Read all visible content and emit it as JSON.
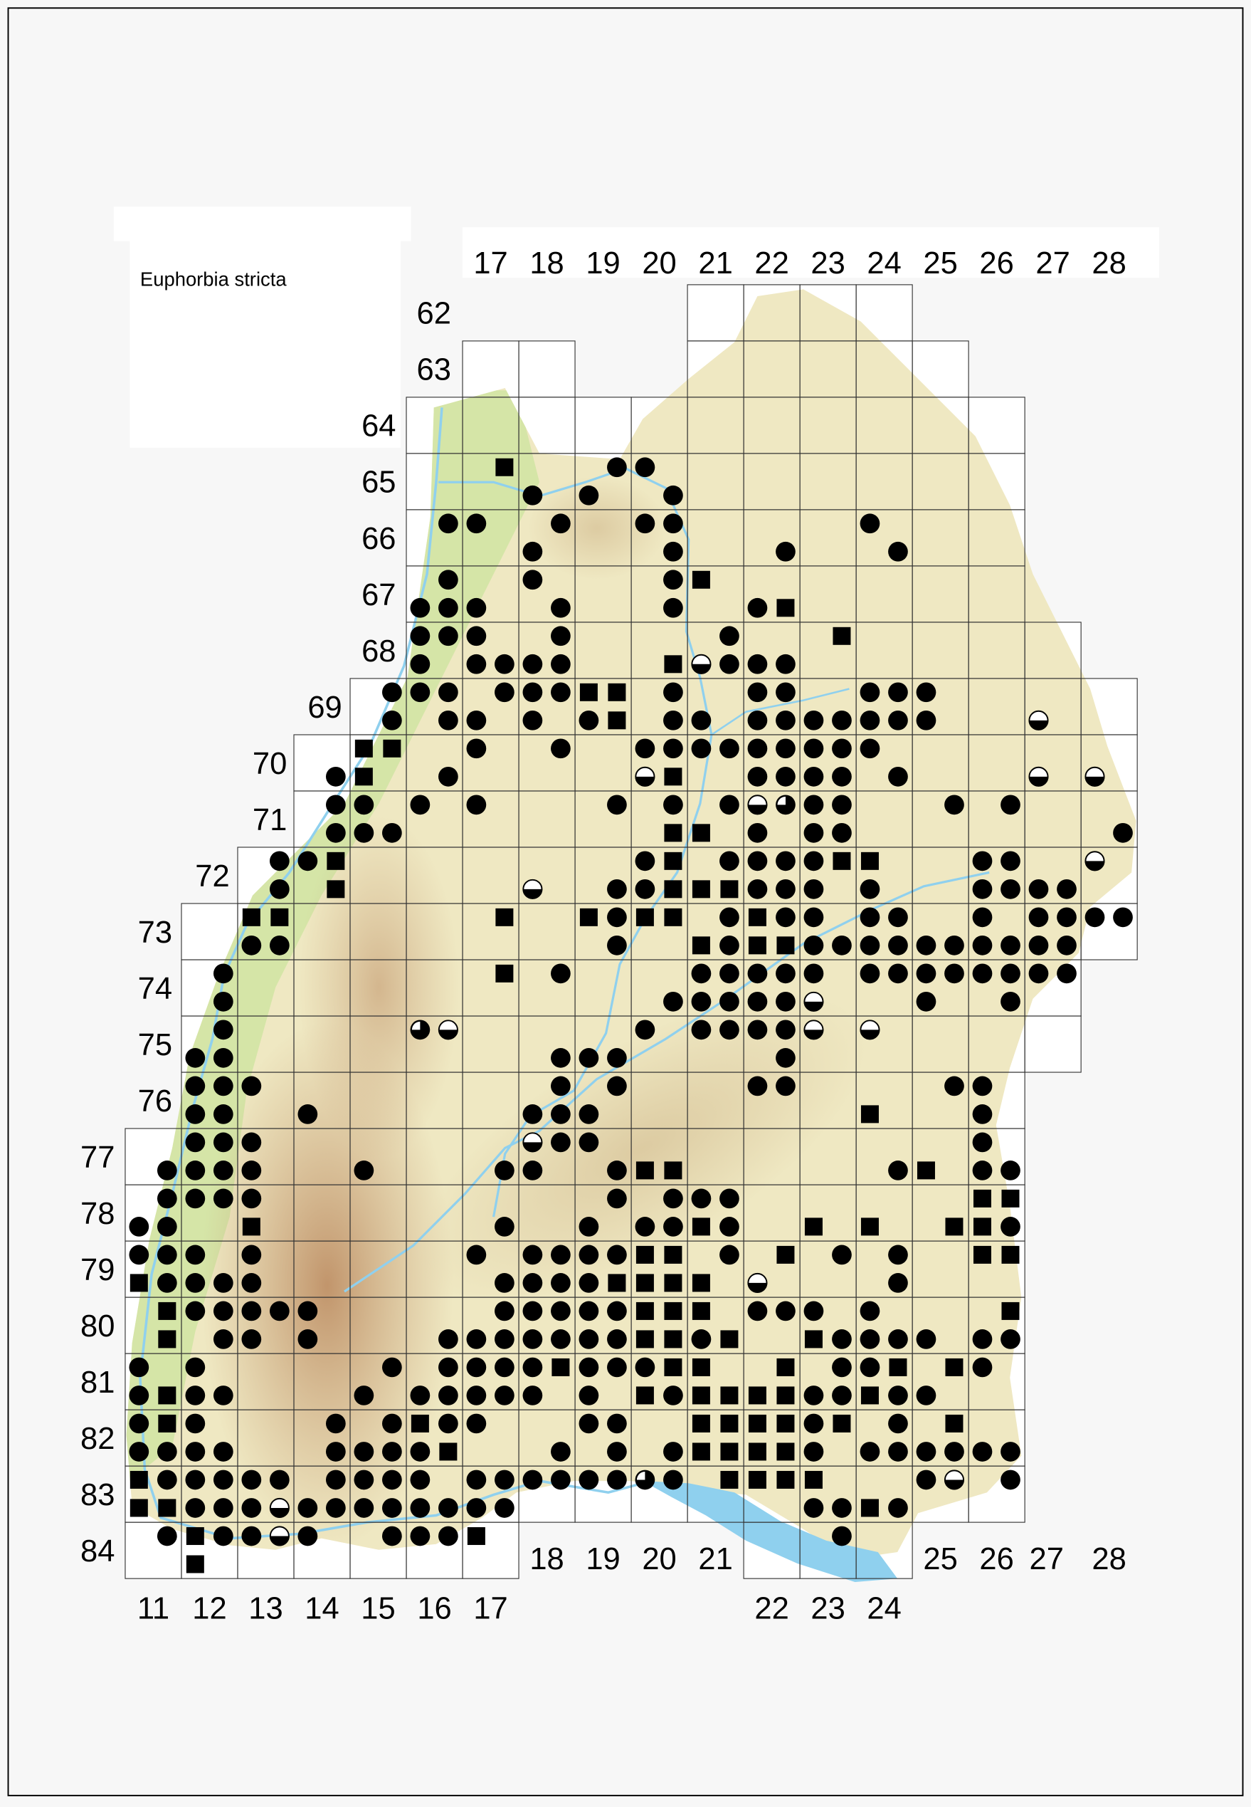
{
  "map": {
    "title": "Euphorbia stricta"
  },
  "grid": {
    "top_column_labels": [
      "17",
      "18",
      "19",
      "20",
      "21",
      "22",
      "23",
      "24",
      "25",
      "26",
      "27",
      "28"
    ],
    "row_labels": [
      "62",
      "63",
      "64",
      "65",
      "66",
      "67",
      "68",
      "69",
      "70",
      "71",
      "72",
      "73",
      "74",
      "75",
      "76",
      "77",
      "78",
      "79",
      "80",
      "81",
      "82",
      "83",
      "84"
    ],
    "bottom_column_labels": [
      "11",
      "12",
      "13",
      "14",
      "15",
      "16",
      "17",
      "18",
      "19",
      "20",
      "21",
      "22",
      "23",
      "24",
      "25",
      "26",
      "27",
      "28"
    ]
  },
  "symbols": {
    "o": "filled-circle",
    "s": "filled-square",
    "h": "half-filled-circle",
    "q": "three-quarter-filled-circle",
    ".": "none"
  },
  "colors": {
    "symbol": "#000000",
    "water": "#8fd0ee",
    "lowland": "#d6e6a8",
    "upland": "#efe8c2",
    "mountain": "#c49a72",
    "grid_line": "#333333"
  },
  "occurrence_columns": "TK columns 11 to 28, two quadrant halves each (west, east)",
  "occurrence_rows": [
    {
      "row": "65",
      "half": "north",
      "cells": ".. .. .. .. .. .. .s .. .o o. .. .. .. .. .. .. .. .."
    },
    {
      "row": "65",
      "half": "south",
      "cells": ".. .. .. .. .. .. .. o. o. .o .. .. .. .. .. .. .. .."
    },
    {
      "row": "66",
      "half": "north",
      "cells": ".. .. .. .. .. .o o. .o .. oo .. .. .. o. .. .. .. .."
    },
    {
      "row": "66",
      "half": "south",
      "cells": ".. .. .. .. .. .. .. o. .. .o .. .o .. .o .. .. .. .."
    },
    {
      "row": "67",
      "half": "north",
      "cells": ".. .. .. .. .. .o .. o. .. .o s. .. .. .. .. .. .. .."
    },
    {
      "row": "67",
      "half": "south",
      "cells": ".. .. .. .. .. oo o. .o .. .o .. os .. .. .. .. .. .."
    },
    {
      "row": "68",
      "half": "north",
      "cells": ".. .. .. .. .. oo o. .o .. .. .o .. .s .. .. .. .. .."
    },
    {
      "row": "68",
      "half": "south",
      "cells": ".. .. .. .. .. o. oo oo .. .s ho oo .. .. .. .. .. .."
    },
    {
      "row": "69",
      "half": "north",
      "cells": ".. .. .. .. .o oo .o oo ss .o .. oo .. oo o. .. .. .."
    },
    {
      "row": "69",
      "half": "south",
      "cells": ".. .. .. .. .o .o o. o. os .o o. oo oo oo o. .. h. .."
    },
    {
      "row": "70",
      "half": "north",
      "cells": ".. .. .. .. ss .. o. .o .. oo oo oo oo o. .. .. .. .."
    },
    {
      "row": "70",
      "half": "south",
      "cells": ".. .. .. .o s. .o .. .. .. hs .. oo oo .o .. .. h. h."
    },
    {
      "row": "71",
      "half": "north",
      "cells": ".. .. .. .o o. o. o. .. .o .o .o hq oo .. .o .o .. .."
    },
    {
      "row": "71",
      "half": "south",
      "cells": ".. .. .. .o oo .. .. .. .. .s s. o. oo .. .. .. .. .o"
    },
    {
      "row": "72",
      "half": "north",
      "cells": ".. .. .o os .. .. .. .. .. os .o oo os s. .. oo .. h."
    },
    {
      "row": "72",
      "half": "south",
      "cells": ".. .. .o .s .. .. .. h. .o os ss oo o. o. .. oo oo .."
    },
    {
      "row": "73",
      "half": "north",
      "cells": ".. .. ss .. .. .. .s .. so ss .o so o. oo .. o. oo oo"
    },
    {
      "row": "73",
      "half": "south",
      "cells": ".. .. oo .. .. .. .. .. .o .. so ss oo oo oo oo oo .."
    },
    {
      "row": "74",
      "half": "north",
      "cells": ".. .o .. .. .. .. .s .o .. .. oo oo o. oo oo oo oo .."
    },
    {
      "row": "74",
      "half": "south",
      "cells": ".. .o .. .. .. .. .. .. .. .o oo oo h. .. o. .o .. .."
    },
    {
      "row": "75",
      "half": "north",
      "cells": ".. .o .. .. .. qh .. .. .. o. oo oo h. h. .. .. .. .."
    },
    {
      "row": "75",
      "half": "south",
      "cells": ".. oo .. .. .. .. .. .o oo .. .. .o .. .. .. .. .. .."
    },
    {
      "row": "76",
      "half": "north",
      "cells": ".. oo o. .. .. .. .. .o .o .. .. oo .. .. .o o. .. .."
    },
    {
      "row": "76",
      "half": "south",
      "cells": ".. oo .. o. .. .. .. oo o. .. .. .. .. s. .. o. .. .."
    },
    {
      "row": "77",
      "half": "north",
      "cells": ".. oo o. .. .. .. .. ho o. .. .. .. .. .. .. o. .. .."
    },
    {
      "row": "77",
      "half": "south",
      "cells": ".o oo o. .. o. .. .o o. .o ss .. .. .. .o s. oo .. .."
    },
    {
      "row": "78",
      "half": "north",
      "cells": ".o oo o. .. .. .. .. .. .o .o oo .. .. .. .. ss .. .."
    },
    {
      "row": "78",
      "half": "south",
      "cells": "oo .. s. .. .. .. .o .. o. oo so .. s. s. .s so .. .."
    },
    {
      "row": "79",
      "half": "north",
      "cells": "oo o. o. .. .. .. o. oo oo ss .o .s .o .o .. ss .. .."
    },
    {
      "row": "79",
      "half": "south",
      "cells": "so oo o. .. .. .. .o oo os ss s. h. .. .o .. .. .. .."
    },
    {
      "row": "80",
      "half": "north",
      "cells": ".s oo oo o. .. .. .o oo oo ss s. oo o. o. .. .s .. .."
    },
    {
      "row": "80",
      "half": "south",
      "cells": ".s .o o. o. .. .o oo oo oo ss os .. so oo o. oo .. .."
    },
    {
      "row": "81",
      "half": "north",
      "cells": "o. o. .. .. .o .o oo os oo os s. .s .o os .s o. .. .."
    },
    {
      "row": "81",
      "half": "south",
      "cells": "os oo .. .. o. oo oo o. o. so ss ss oo so o. .. .. .."
    },
    {
      "row": "82",
      "half": "north",
      "cells": "os o. .. .o .o so o. .. oo .. ss ss os .o .s .. .. .."
    },
    {
      "row": "82",
      "half": "south",
      "cells": "oo oo .. .o oo os .. .o .o .o ss ss o. oo oo oo .. .."
    },
    {
      "row": "83",
      "half": "north",
      "cells": "so oo oo .o oo o. oo oo oo qo .s ss s. .. oh .o .. .."
    },
    {
      "row": "83",
      "half": "south",
      "cells": "ss oo oh oo oo oo oo .. .. .. .. .. oo so .. .. .. .."
    },
    {
      "row": "84",
      "half": "north",
      "cells": ".o so oh o. .o oo s. .. .. .. .. .. .o .. .. .. .. .."
    },
    {
      "row": "84",
      "half": "south",
      "cells": ".. s. .. .. .. .. .. .. .. .. .. .. .. .. .. .. .. .."
    }
  ]
}
